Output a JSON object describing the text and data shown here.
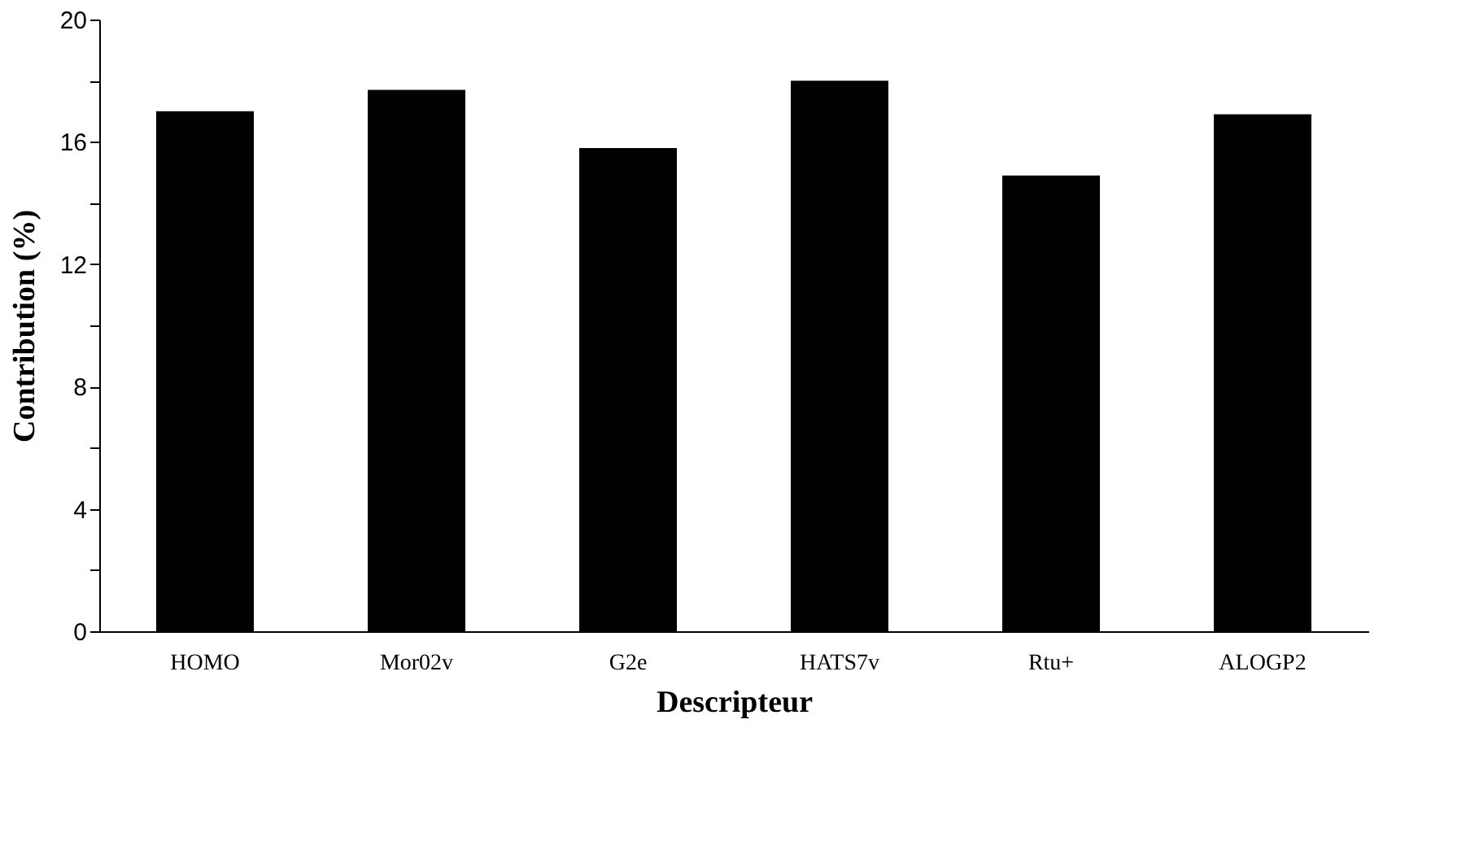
{
  "chart_data": {
    "type": "bar",
    "xlabel": "Descripteur",
    "ylabel": "Contribution (%)",
    "categories": [
      "HOMO",
      "Mor02v",
      "G2e",
      "HATS7v",
      "Rtu+",
      "ALOGP2"
    ],
    "values": [
      17.0,
      17.7,
      15.8,
      18.0,
      14.9,
      16.9
    ],
    "color": "#000000",
    "ylim": [
      0,
      20
    ],
    "yticks": [
      0,
      {
        "value": 2,
        "label": null
      },
      4,
      {
        "value": 6,
        "label": null
      },
      8,
      {
        "value": 10,
        "label": null
      },
      12,
      {
        "value": 14,
        "label": null
      },
      16,
      {
        "value": 18,
        "label": null
      },
      20
    ],
    "grid": false
  }
}
